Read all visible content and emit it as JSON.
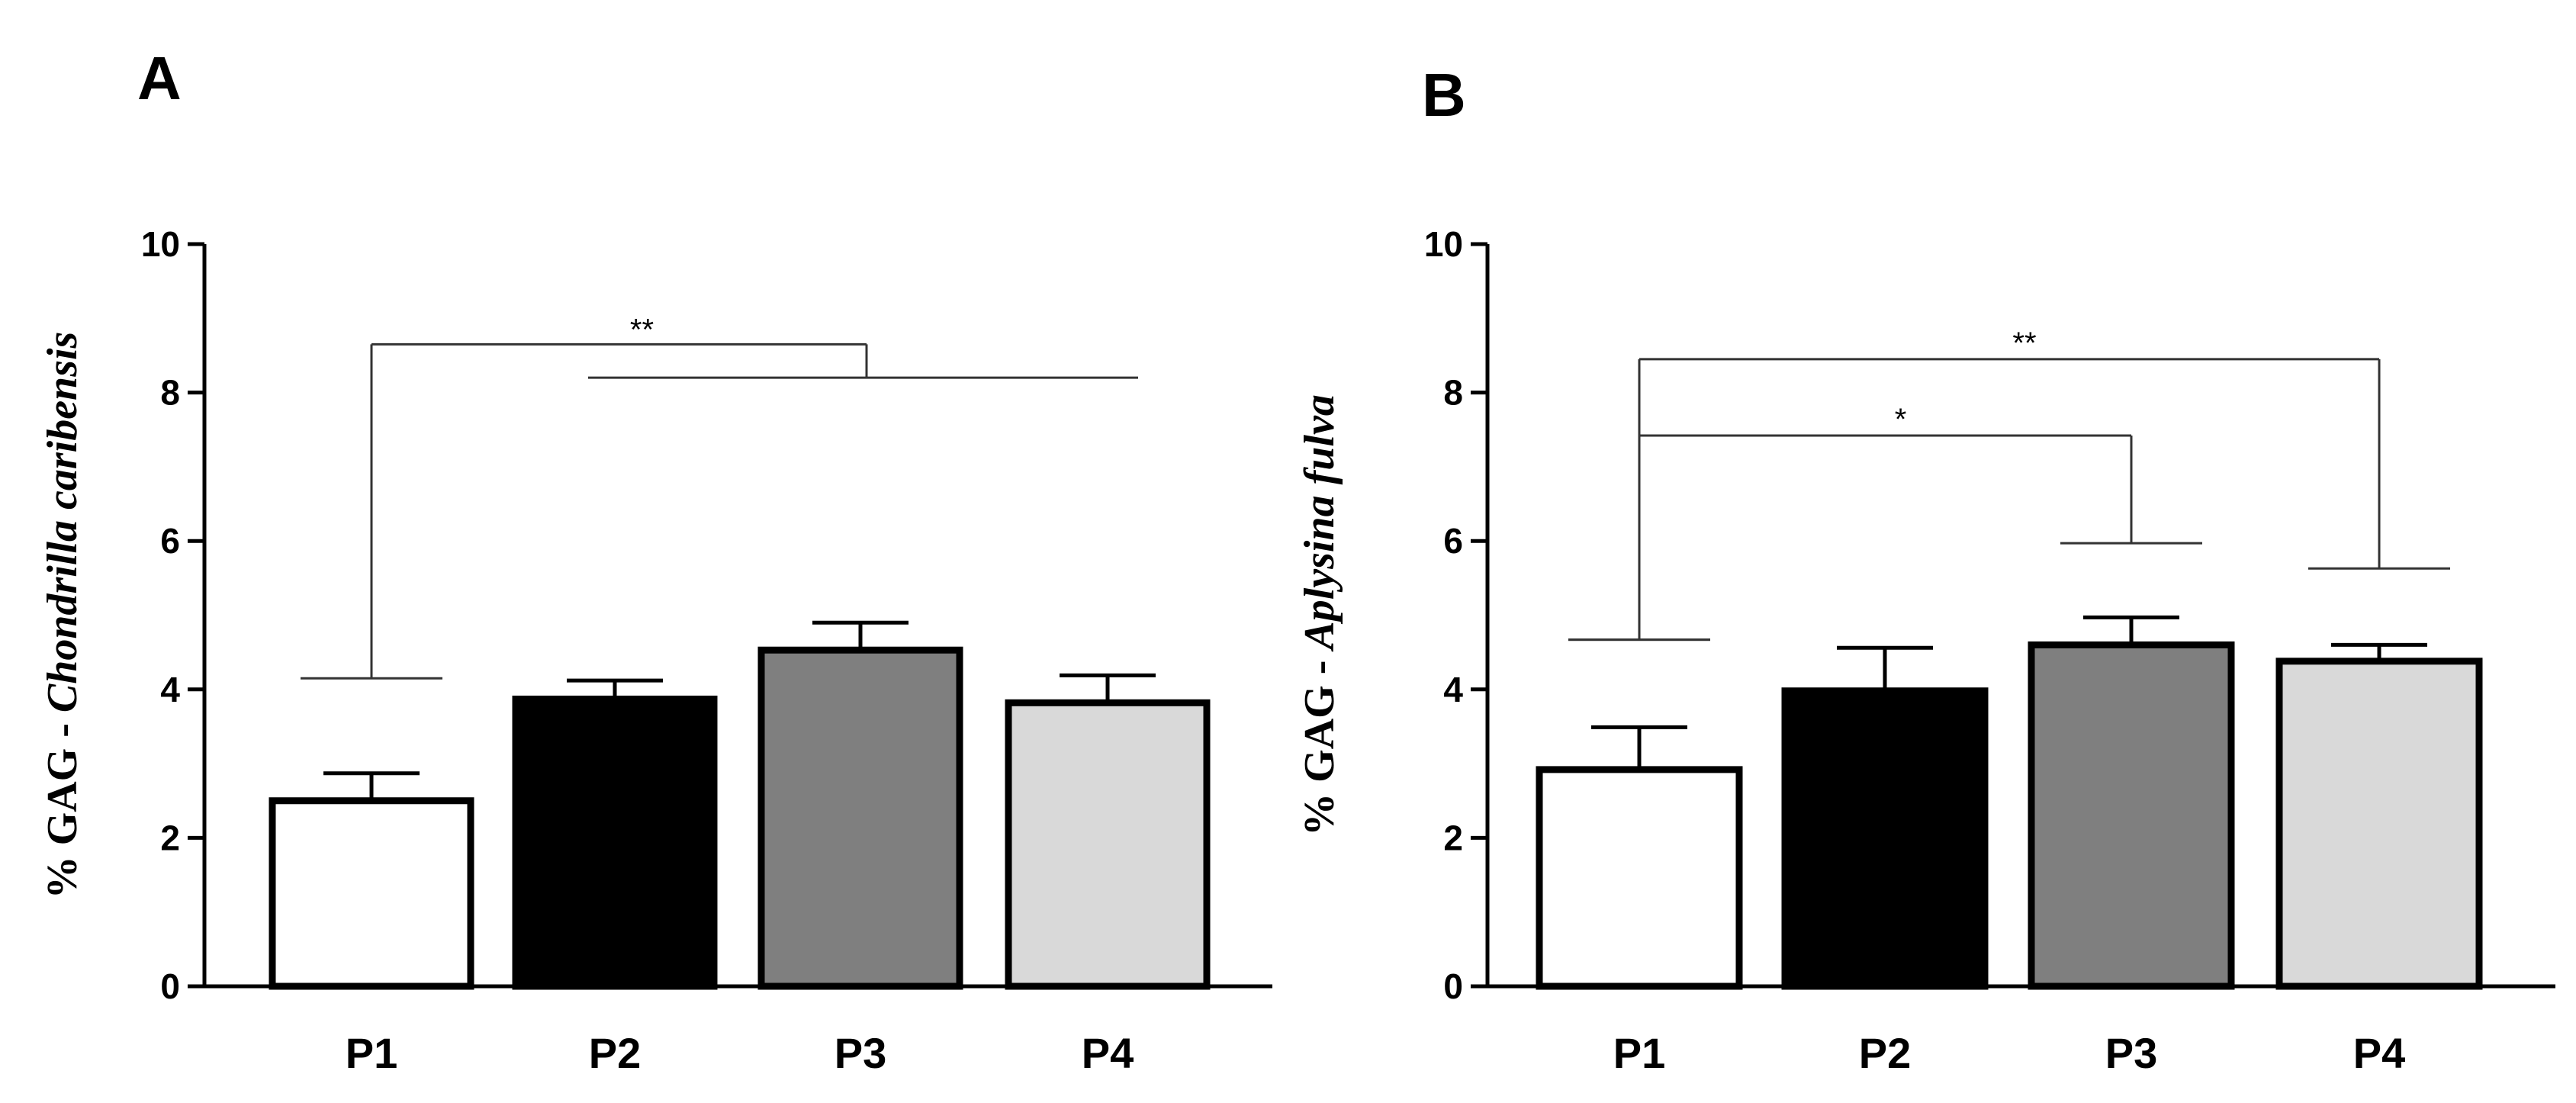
{
  "chart_data": [
    {
      "panel": "A",
      "type": "bar",
      "categories": [
        "P1",
        "P2",
        "P3",
        "P4"
      ],
      "values": [
        2.5,
        3.87,
        4.53,
        3.82
      ],
      "errors": [
        0.37,
        0.25,
        0.37,
        0.37
      ],
      "colors": [
        "#ffffff",
        "#000000",
        "#7f7f7f",
        "#d9d9d9"
      ],
      "ylabel_prefix": "% GAG - ",
      "ylabel_species": "Chondrilla caribensis",
      "xlabel": "",
      "ylim": [
        0,
        10
      ],
      "yticks": [
        "0",
        "2",
        "4",
        "6",
        "8",
        "10"
      ],
      "significance": [
        {
          "label": "**",
          "from": "P1",
          "to_group": [
            "P2",
            "P3",
            "P4"
          ],
          "bracket_y": 8.65,
          "group_y": 8.2,
          "left_drop_y": 4.15
        }
      ]
    },
    {
      "panel": "B",
      "type": "bar",
      "categories": [
        "P1",
        "P2",
        "P3",
        "P4"
      ],
      "values": [
        2.92,
        3.98,
        4.6,
        4.38
      ],
      "errors": [
        0.57,
        0.58,
        0.37,
        0.22
      ],
      "colors": [
        "#ffffff",
        "#000000",
        "#7f7f7f",
        "#d9d9d9"
      ],
      "ylabel_prefix": "% GAG - ",
      "ylabel_species": "Aplysina fulva",
      "xlabel": "",
      "ylim": [
        0,
        10
      ],
      "yticks": [
        "0",
        "2",
        "4",
        "6",
        "8",
        "10"
      ],
      "significance": [
        {
          "label": "*",
          "from": "P1",
          "to": "P3",
          "bracket_y": 7.42,
          "left_drop_y": 4.67,
          "right_drop_y": 5.97
        },
        {
          "label": "**",
          "from": "P1",
          "to": "P4",
          "bracket_y": 8.45,
          "left_drop_y": 4.67,
          "right_drop_y": 5.63
        }
      ]
    }
  ]
}
